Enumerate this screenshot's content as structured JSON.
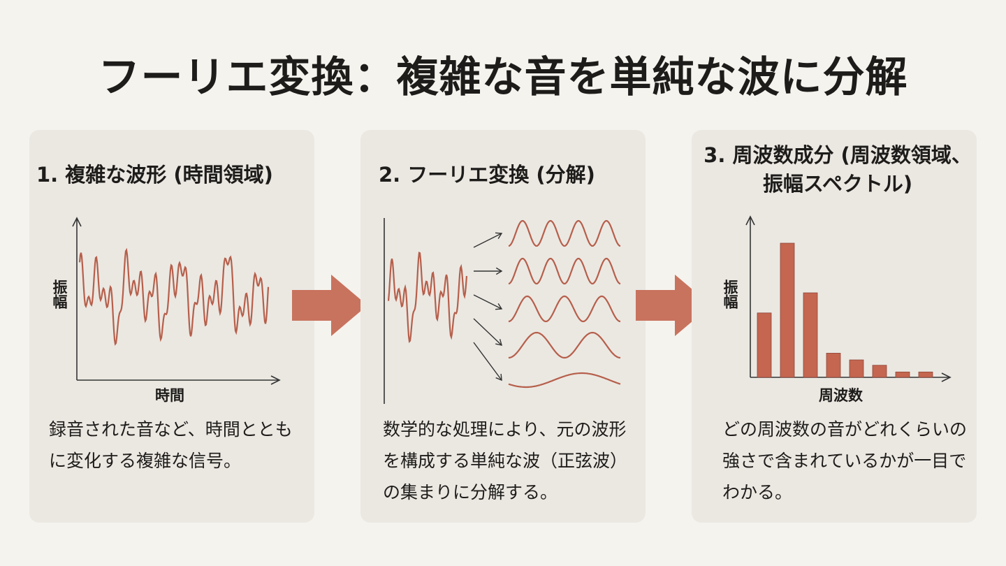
{
  "title": "フーリエ変換：複雑な音を単純な波に分解",
  "colors": {
    "wave": "#b65f4b",
    "bar": "#c46650",
    "arrow": "#c8735e",
    "panel": "#ebe8e2",
    "background": "#f5f3ee",
    "axis": "#333333"
  },
  "panel1": {
    "heading": "1. 複雑な波形 (時間領域)",
    "y_axis_label": "振幅",
    "x_axis_label": "時間",
    "description": "録音された音など、時間とともに変化する複雑な信号。"
  },
  "panel2": {
    "heading": "2. フーリエ変換 (分解)",
    "description": "数学的な処理により、元の波形を構成する単純な波（正弦波）の集まりに分解する。"
  },
  "panel3": {
    "heading": "3. 周波数成分 (周波数領域、振幅スペクトル)",
    "y_axis_label": "振幅",
    "x_axis_label": "周波数",
    "description": "どの周波数の音がどれくらいの強さで含まれているかが一目でわかる。"
  },
  "chart_data": {
    "type": "bar",
    "values": [
      0.48,
      1.0,
      0.63,
      0.18,
      0.13,
      0.09,
      0.04,
      0.04
    ],
    "xlabel": "周波数",
    "ylabel": "振幅"
  }
}
